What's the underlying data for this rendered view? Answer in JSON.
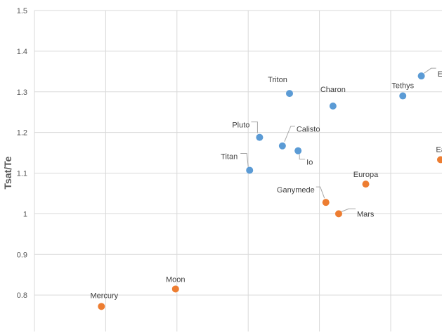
{
  "chart_data": {
    "type": "scatter",
    "ylabel": "Tsat/Te",
    "ylim": [
      0.7,
      1.5
    ],
    "yticks": [
      "0.8",
      "0.9",
      "1",
      "1.1",
      "1.2",
      "1.3",
      "1.4",
      "1.5"
    ],
    "grid": true,
    "colors": {
      "series_a": "#5b9bd5",
      "series_b": "#ed7d31"
    },
    "points": [
      {
        "label": "Mercury",
        "x": 0.94,
        "y": 0.772,
        "color": "#ed7d31"
      },
      {
        "label": "Moon",
        "x": 1.98,
        "y": 0.815,
        "color": "#ed7d31"
      },
      {
        "label": "Titan",
        "x": 3.02,
        "y": 1.107,
        "color": "#5b9bd5"
      },
      {
        "label": "Pluto",
        "x": 3.16,
        "y": 1.188,
        "color": "#5b9bd5"
      },
      {
        "label": "Calisto",
        "x": 3.48,
        "y": 1.167,
        "color": "#5b9bd5"
      },
      {
        "label": "Io",
        "x": 3.7,
        "y": 1.155,
        "color": "#5b9bd5"
      },
      {
        "label": "Triton",
        "x": 3.58,
        "y": 1.296,
        "color": "#5b9bd5"
      },
      {
        "label": "Charon",
        "x": 4.19,
        "y": 1.265,
        "color": "#5b9bd5"
      },
      {
        "label": "Ganymede",
        "x": 4.09,
        "y": 1.028,
        "color": "#ed7d31"
      },
      {
        "label": "Mars",
        "x": 4.27,
        "y": 1.0,
        "color": "#ed7d31"
      },
      {
        "label": "Europa",
        "x": 4.65,
        "y": 1.073,
        "color": "#ed7d31"
      },
      {
        "label": "Tethys",
        "x": 5.17,
        "y": 1.29,
        "color": "#5b9bd5"
      },
      {
        "label": "E",
        "x": 5.43,
        "y": 1.339,
        "color": "#5b9bd5"
      },
      {
        "label": "Ear",
        "x": 5.7,
        "y": 1.133,
        "color": "#ed7d31"
      }
    ]
  }
}
